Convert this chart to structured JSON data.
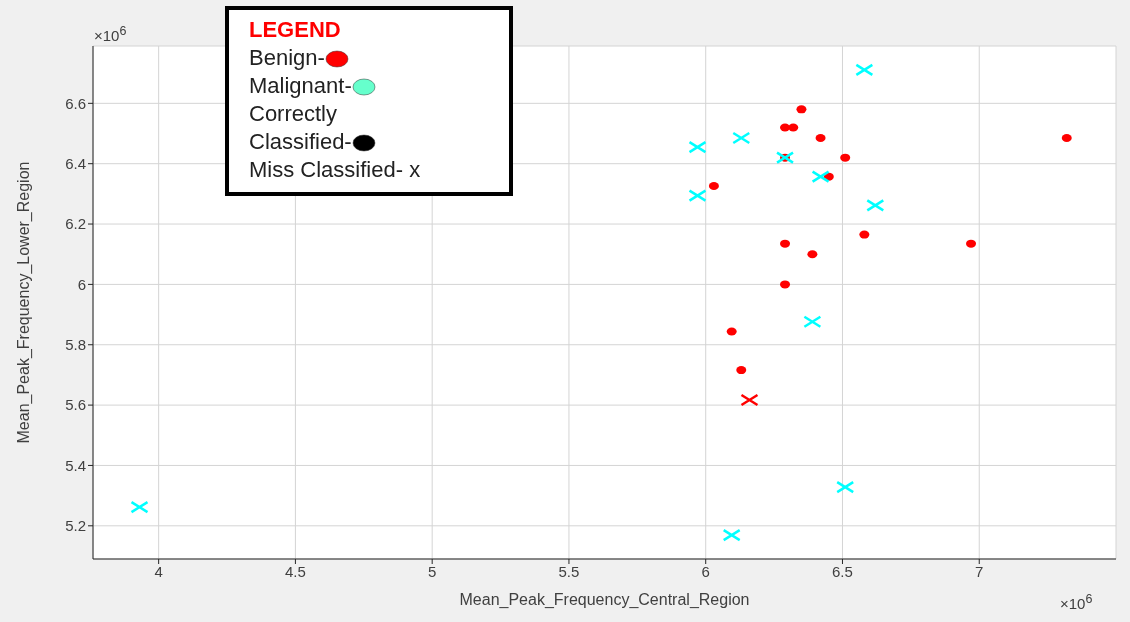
{
  "chart_data": {
    "type": "scatter",
    "xlabel": "Mean_Peak_Frequency_Central_Region",
    "ylabel": "Mean_Peak_Frequency_Lower_Region",
    "legend_title": "LEGEND",
    "annotations": [
      "Benign-",
      "Malignant-",
      "Correctly Classified-",
      "Miss Classified- x",
      "×10$^{6}$",
      "×10$^{6}$"
    ],
    "xlim": [
      3.76,
      7.5
    ],
    "xticks": [
      4,
      4.5,
      5,
      5.5,
      6,
      6.5,
      7
    ],
    "ylim": [
      5.09,
      6.79
    ],
    "yticks": [
      5.2,
      5.4,
      5.6,
      5.8,
      6,
      6.2,
      6.4,
      6.6
    ],
    "grid": true,
    "series": [
      {
        "color": "#ff0000",
        "marker": "circle",
        "x": [
          6.35,
          6.29,
          6.32,
          6.42,
          7.32,
          6.29,
          6.51,
          6.45,
          6.03,
          6.58,
          6.29,
          6.97,
          6.39,
          6.29,
          6.095,
          6.13
        ],
        "values": [
          6.58,
          6.52,
          6.52,
          6.485,
          6.485,
          6.42,
          6.42,
          6.357,
          6.326,
          6.165,
          6.135,
          6.135,
          6.1,
          6.0,
          5.844,
          5.716
        ]
      },
      {
        "color": "#ff0000",
        "marker": "cross",
        "x": [
          6.16
        ],
        "values": [
          5.617
        ]
      },
      {
        "color": "#00ffff",
        "marker": "cross",
        "x": [
          6.58,
          6.13,
          5.97,
          6.29,
          6.42,
          5.97,
          6.62,
          6.39,
          6.51,
          6.095,
          3.93
        ],
        "values": [
          6.711,
          6.485,
          6.455,
          6.42,
          6.357,
          6.294,
          6.262,
          5.876,
          5.328,
          5.169,
          5.262
        ]
      }
    ]
  }
}
